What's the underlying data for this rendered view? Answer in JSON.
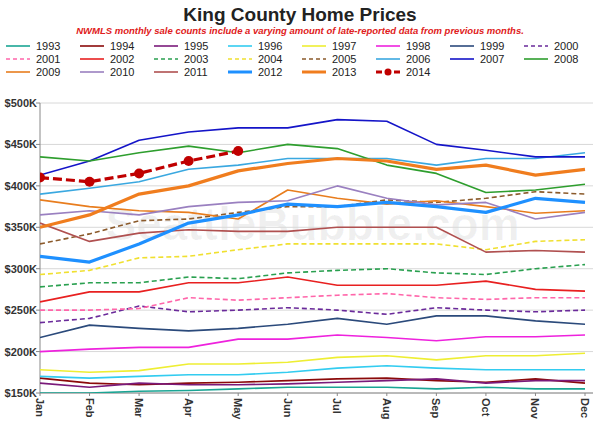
{
  "chart_data": {
    "type": "line",
    "title": "King County Home Prices",
    "subtitle": "NWMLS monthly sale counts include a varying amount of late-reported data from previous months.",
    "annotations": [
      "SeattleBubble.com"
    ],
    "categories": [
      "Jan",
      "Feb",
      "Mar",
      "Apr",
      "May",
      "Jun",
      "Jul",
      "Aug",
      "Sep",
      "Oct",
      "Nov",
      "Dec"
    ],
    "ylim": [
      150000,
      500000
    ],
    "yticks": [
      {
        "value": 150000,
        "label": "$150K"
      },
      {
        "value": 200000,
        "label": "$200K"
      },
      {
        "value": 250000,
        "label": "$250K"
      },
      {
        "value": 300000,
        "label": "$300K"
      },
      {
        "value": 350000,
        "label": "$350K"
      },
      {
        "value": 400000,
        "label": "$400K"
      },
      {
        "value": 450000,
        "label": "$450K"
      },
      {
        "value": 500000,
        "label": "$500K"
      }
    ],
    "grid": true,
    "legend": "top",
    "series": [
      {
        "name": "1993",
        "color": "#1aa594",
        "values": [
          150000,
          150000,
          152000,
          153000,
          155000,
          157000,
          157000,
          157000,
          155000,
          157000,
          155000,
          155000
        ]
      },
      {
        "name": "1994",
        "color": "#8b0a0a",
        "values": [
          168000,
          162000,
          160000,
          162000,
          163000,
          165000,
          167000,
          168000,
          165000,
          163000,
          167000,
          162000
        ]
      },
      {
        "name": "1995",
        "color": "#7a1a7a",
        "values": [
          162000,
          157000,
          162000,
          160000,
          160000,
          161000,
          163000,
          165000,
          167000,
          162000,
          165000,
          165000
        ]
      },
      {
        "name": "1996",
        "color": "#33ccf0",
        "values": [
          170000,
          168000,
          170000,
          172000,
          172000,
          175000,
          180000,
          183000,
          180000,
          178000,
          178000,
          178000
        ]
      },
      {
        "name": "1997",
        "color": "#eeee33",
        "values": [
          178000,
          175000,
          177000,
          185000,
          185000,
          187000,
          193000,
          195000,
          190000,
          195000,
          195000,
          198000
        ]
      },
      {
        "name": "1998",
        "color": "#ee22dd",
        "values": [
          200000,
          203000,
          205000,
          205000,
          215000,
          215000,
          220000,
          217000,
          213000,
          218000,
          218000,
          220000
        ]
      },
      {
        "name": "1999",
        "color": "#2b4a7b",
        "values": [
          217000,
          232000,
          228000,
          225000,
          228000,
          233000,
          240000,
          233000,
          243000,
          243000,
          237000,
          233000
        ]
      },
      {
        "name": "2000",
        "color": "#6a2a9a",
        "line_style": "dashed",
        "values": [
          235000,
          240000,
          255000,
          248000,
          250000,
          253000,
          250000,
          245000,
          253000,
          250000,
          248000,
          250000
        ]
      },
      {
        "name": "2001",
        "color": "#ff66aa",
        "line_style": "dashed",
        "values": [
          250000,
          250000,
          252000,
          265000,
          262000,
          265000,
          268000,
          270000,
          265000,
          263000,
          265000,
          265000
        ]
      },
      {
        "name": "2002",
        "color": "#e82020",
        "values": [
          260000,
          272000,
          272000,
          283000,
          283000,
          290000,
          280000,
          280000,
          280000,
          285000,
          275000,
          273000
        ]
      },
      {
        "name": "2003",
        "color": "#2aa050",
        "line_style": "dashed",
        "values": [
          278000,
          283000,
          283000,
          290000,
          288000,
          295000,
          298000,
          300000,
          295000,
          293000,
          300000,
          305000
        ]
      },
      {
        "name": "2004",
        "color": "#f0e030",
        "line_style": "dashed",
        "values": [
          293000,
          298000,
          313000,
          315000,
          323000,
          330000,
          330000,
          330000,
          330000,
          323000,
          333000,
          335000
        ]
      },
      {
        "name": "2005",
        "color": "#8b5a2b",
        "line_style": "dashed",
        "values": [
          330000,
          342000,
          358000,
          360000,
          368000,
          375000,
          375000,
          383000,
          380000,
          385000,
          393000,
          390000
        ]
      },
      {
        "name": "2006",
        "color": "#3aa8e0",
        "values": [
          390000,
          397000,
          405000,
          420000,
          425000,
          433000,
          433000,
          433000,
          425000,
          433000,
          433000,
          440000
        ]
      },
      {
        "name": "2007",
        "color": "#1414c8",
        "values": [
          413000,
          430000,
          455000,
          465000,
          470000,
          470000,
          480000,
          478000,
          450000,
          443000,
          435000,
          435000
        ]
      },
      {
        "name": "2008",
        "color": "#2e9e2e",
        "values": [
          435000,
          430000,
          440000,
          448000,
          440000,
          450000,
          445000,
          425000,
          415000,
          392000,
          395000,
          402000
        ]
      },
      {
        "name": "2009",
        "color": "#e87d1e",
        "values": [
          383000,
          375000,
          370000,
          368000,
          360000,
          395000,
          385000,
          378000,
          382000,
          375000,
          367000,
          370000
        ]
      },
      {
        "name": "2010",
        "color": "#9a80c0",
        "values": [
          365000,
          370000,
          365000,
          375000,
          380000,
          382000,
          400000,
          385000,
          377000,
          380000,
          360000,
          368000
        ]
      },
      {
        "name": "2011",
        "color": "#b05050",
        "values": [
          355000,
          333000,
          343000,
          347000,
          345000,
          345000,
          350000,
          350000,
          350000,
          320000,
          322000,
          320000
        ]
      },
      {
        "name": "2012",
        "color": "#1e90ff",
        "values": [
          315000,
          308000,
          330000,
          355000,
          365000,
          378000,
          375000,
          380000,
          375000,
          368000,
          385000,
          380000
        ]
      },
      {
        "name": "2013",
        "color": "#f07d1e",
        "values": [
          350000,
          365000,
          390000,
          400000,
          418000,
          427000,
          433000,
          430000,
          420000,
          425000,
          413000,
          420000
        ]
      },
      {
        "name": "2014",
        "color": "#c00000",
        "line_style": "dashed",
        "marker": "circle",
        "values": [
          410000,
          405000,
          415000,
          430000,
          442000,
          null,
          null,
          null,
          null,
          null,
          null,
          null
        ]
      }
    ]
  }
}
